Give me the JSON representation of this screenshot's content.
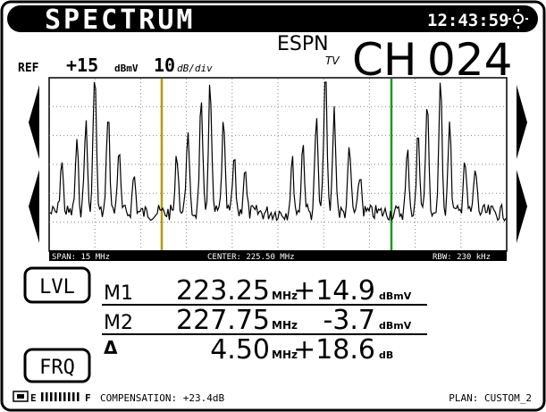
{
  "header": {
    "title": "SPECTRUM",
    "time": "12:43:59"
  },
  "channel": {
    "network": "ESPN",
    "network_sub": "TV",
    "label": "CH",
    "number": "024"
  },
  "reference": {
    "label": "REF",
    "level": "+15",
    "level_unit": "dBmV",
    "scale": "10",
    "scale_unit": "dB/div"
  },
  "plot_footer": {
    "span": "SPAN: 15 MHz",
    "center": "CENTER: 225.50 MHz",
    "rbw": "RBW: 230 kHz"
  },
  "buttons": [
    "LVL",
    "FRQ"
  ],
  "markers": [
    {
      "label": "M1",
      "freq": "223.25",
      "freq_unit": "MHz",
      "level": "+14.9",
      "level_unit": "dBmV"
    },
    {
      "label": "M2",
      "freq": "227.75",
      "freq_unit": "MHz",
      "level": "-3.7",
      "level_unit": "dBmV"
    }
  ],
  "delta": {
    "label": "Δ",
    "freq": "4.50",
    "freq_unit": "MHz",
    "level": "+18.6",
    "level_unit": "dB"
  },
  "status": {
    "battery_end": "F",
    "compensation": "COMPENSATION: +23.4dB",
    "plan": "PLAN: CUSTOM_2"
  }
}
